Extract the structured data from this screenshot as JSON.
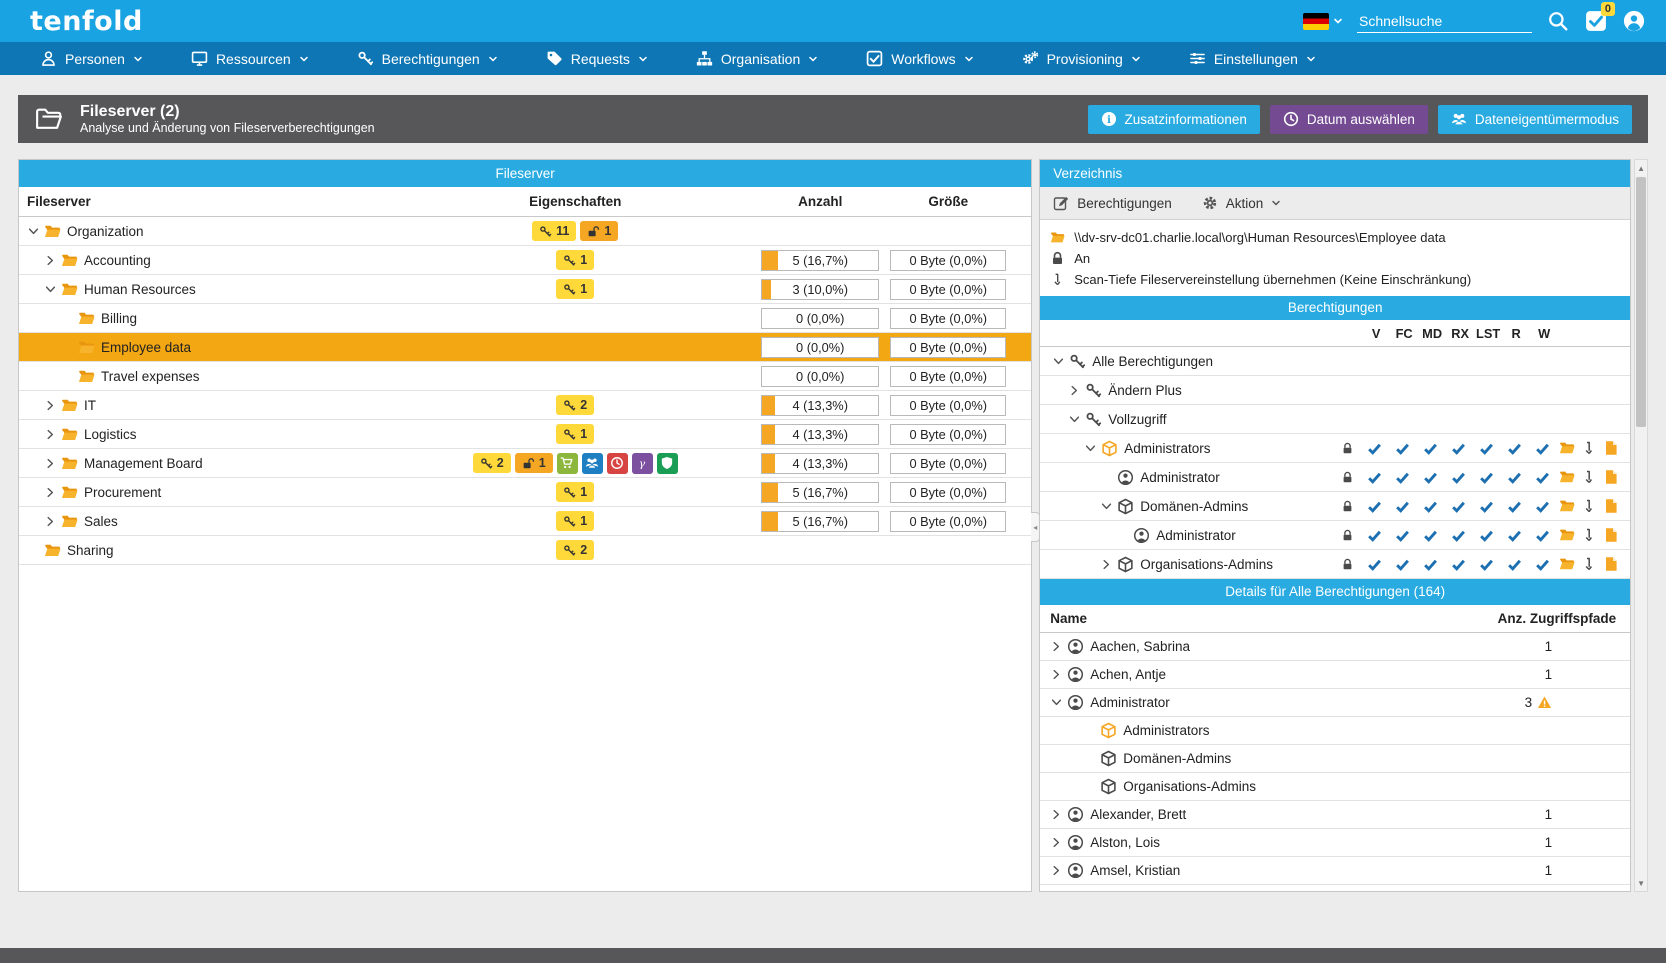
{
  "topbar": {
    "logo": "tenfold",
    "search_placeholder": "Schnellsuche",
    "notification_count": "0"
  },
  "nav": {
    "items": [
      {
        "label": "Personen",
        "icon": "person-nav"
      },
      {
        "label": "Ressourcen",
        "icon": "monitor"
      },
      {
        "label": "Berechtigungen",
        "icon": "key"
      },
      {
        "label": "Requests",
        "icon": "tag"
      },
      {
        "label": "Organisation",
        "icon": "orgchart"
      },
      {
        "label": "Workflows",
        "icon": "checkbox"
      },
      {
        "label": "Provisioning",
        "icon": "gears"
      },
      {
        "label": "Einstellungen",
        "icon": "sliders"
      }
    ]
  },
  "page_header": {
    "title": "Fileserver (2)",
    "subtitle": "Analyse und Änderung von Fileserverberechtigungen",
    "buttons": [
      {
        "label": "Zusatzinformationen",
        "icon": "info",
        "color": "#29abe2"
      },
      {
        "label": "Datum auswählen",
        "icon": "clock-outline",
        "color": "#744a92"
      },
      {
        "label": "Dateneigentümermodus",
        "icon": "people",
        "color": "#29abe2"
      }
    ]
  },
  "fileserver_panel": {
    "title": "Fileserver",
    "columns": {
      "name": "Fileserver",
      "props": "Eigenschaften",
      "count": "Anzahl",
      "size": "Größe"
    },
    "rows": [
      {
        "label": "Organization",
        "level": 0,
        "chevron": "down",
        "badges": [
          {
            "icon": "key",
            "count": "11",
            "style": "yellow"
          },
          {
            "icon": "unlock",
            "count": "1",
            "style": "orange"
          }
        ],
        "count": null,
        "size": null,
        "selected": false
      },
      {
        "label": "Accounting",
        "level": 1,
        "chevron": "right",
        "badges": [
          {
            "icon": "key",
            "count": "1",
            "style": "yellow"
          }
        ],
        "count": {
          "text": "5 (16,7%)",
          "pct": 16.7
        },
        "size": "0 Byte (0,0%)",
        "selected": false
      },
      {
        "label": "Human Resources",
        "level": 1,
        "chevron": "down",
        "badges": [
          {
            "icon": "key",
            "count": "1",
            "style": "yellow"
          }
        ],
        "count": {
          "text": "3 (10,0%)",
          "pct": 10
        },
        "size": "0 Byte (0,0%)",
        "selected": false
      },
      {
        "label": "Billing",
        "level": 2,
        "chevron": "none",
        "badges": [],
        "count": {
          "text": "0 (0,0%)",
          "pct": 0
        },
        "size": "0 Byte (0,0%)",
        "selected": false
      },
      {
        "label": "Employee data",
        "level": 2,
        "chevron": "none",
        "badges": [],
        "count": {
          "text": "0 (0,0%)",
          "pct": 0
        },
        "size": "0 Byte (0,0%)",
        "selected": true
      },
      {
        "label": "Travel expenses",
        "level": 2,
        "chevron": "none",
        "badges": [],
        "count": {
          "text": "0 (0,0%)",
          "pct": 0
        },
        "size": "0 Byte (0,0%)",
        "selected": false
      },
      {
        "label": "IT",
        "level": 1,
        "chevron": "right",
        "badges": [
          {
            "icon": "key",
            "count": "2",
            "style": "yellow"
          }
        ],
        "count": {
          "text": "4 (13,3%)",
          "pct": 13.3
        },
        "size": "0 Byte (0,0%)",
        "selected": false
      },
      {
        "label": "Logistics",
        "level": 1,
        "chevron": "right",
        "badges": [
          {
            "icon": "key",
            "count": "1",
            "style": "yellow"
          }
        ],
        "count": {
          "text": "4 (13,3%)",
          "pct": 13.3
        },
        "size": "0 Byte (0,0%)",
        "selected": false
      },
      {
        "label": "Management Board",
        "level": 1,
        "chevron": "right",
        "badges": [
          {
            "icon": "key",
            "count": "2",
            "style": "yellow"
          },
          {
            "icon": "unlock",
            "count": "1",
            "style": "orange"
          },
          {
            "icon": "cart",
            "style": "green"
          },
          {
            "icon": "people",
            "style": "blue"
          },
          {
            "icon": "clock",
            "style": "red"
          },
          {
            "icon": "gamma",
            "style": "purple"
          },
          {
            "icon": "shield",
            "style": "dgreen"
          }
        ],
        "count": {
          "text": "4 (13,3%)",
          "pct": 13.3
        },
        "size": "0 Byte (0,0%)",
        "selected": false
      },
      {
        "label": "Procurement",
        "level": 1,
        "chevron": "right",
        "badges": [
          {
            "icon": "key",
            "count": "1",
            "style": "yellow"
          }
        ],
        "count": {
          "text": "5 (16,7%)",
          "pct": 16.7
        },
        "size": "0 Byte (0,0%)",
        "selected": false
      },
      {
        "label": "Sales",
        "level": 1,
        "chevron": "right",
        "badges": [
          {
            "icon": "key",
            "count": "1",
            "style": "yellow"
          }
        ],
        "count": {
          "text": "5 (16,7%)",
          "pct": 16.7
        },
        "size": "0 Byte (0,0%)",
        "selected": false
      },
      {
        "label": "Sharing",
        "level": 0,
        "chevron": "none",
        "badges": [
          {
            "icon": "key",
            "count": "2",
            "style": "yellow"
          }
        ],
        "count": null,
        "size": null,
        "selected": false
      }
    ]
  },
  "directory_panel": {
    "title": "Verzeichnis",
    "toolbar": {
      "edit_label": "Berechtigungen",
      "action_label": "Aktion"
    },
    "info": [
      {
        "icon": "folder",
        "text": "\\\\dv-srv-dc01.charlie.local\\org\\Human Resources\\Employee data"
      },
      {
        "icon": "lock",
        "text": "An"
      },
      {
        "icon": "arrow-down",
        "text": "Scan-Tiefe Fileservereinstellung übernehmen (Keine Einschränkung)"
      }
    ],
    "permissions": {
      "title": "Berechtigungen",
      "perm_columns": [
        "V",
        "FC",
        "MD",
        "RX",
        "LST",
        "R",
        "W"
      ],
      "rows": [
        {
          "label": "Alle Berechtigungen",
          "level": 0,
          "chevron": "down",
          "icon": "key",
          "perms": false
        },
        {
          "label": "Ändern Plus",
          "level": 1,
          "chevron": "right",
          "icon": "key",
          "perms": false
        },
        {
          "label": "Vollzugriff",
          "level": 1,
          "chevron": "down",
          "icon": "key",
          "perms": false
        },
        {
          "label": "Administrators",
          "level": 2,
          "chevron": "down",
          "icon": "box-orange",
          "perms": true
        },
        {
          "label": "Administrator",
          "level": 3,
          "chevron": "none",
          "icon": "person",
          "perms": true
        },
        {
          "label": "Domänen-Admins",
          "level": 3,
          "chevron": "down",
          "icon": "box",
          "perms": true
        },
        {
          "label": "Administrator",
          "level": 4,
          "chevron": "none",
          "icon": "person",
          "perms": true
        },
        {
          "label": "Organisations-Admins",
          "level": 3,
          "chevron": "right",
          "icon": "box",
          "perms": true
        }
      ]
    },
    "details": {
      "title": "Details für Alle Berechtigungen (164)",
      "columns": {
        "name": "Name",
        "paths": "Anz. Zugriffspfade"
      },
      "rows": [
        {
          "label": "Aachen, Sabrina",
          "chevron": "right",
          "icon": "person",
          "count": "1",
          "warn": false,
          "sub": false
        },
        {
          "label": "Achen, Antje",
          "chevron": "right",
          "icon": "person",
          "count": "1",
          "warn": false,
          "sub": false
        },
        {
          "label": "Administrator",
          "chevron": "down",
          "icon": "person",
          "count": "3",
          "warn": true,
          "sub": false
        },
        {
          "label": "Administrators",
          "chevron": "none",
          "icon": "box-orange",
          "count": "",
          "warn": false,
          "sub": true
        },
        {
          "label": "Domänen-Admins",
          "chevron": "none",
          "icon": "box",
          "count": "",
          "warn": false,
          "sub": true
        },
        {
          "label": "Organisations-Admins",
          "chevron": "none",
          "icon": "box",
          "count": "",
          "warn": false,
          "sub": true
        },
        {
          "label": "Alexander, Brett",
          "chevron": "right",
          "icon": "person",
          "count": "1",
          "warn": false,
          "sub": false
        },
        {
          "label": "Alston, Lois",
          "chevron": "right",
          "icon": "person",
          "count": "1",
          "warn": false,
          "sub": false
        },
        {
          "label": "Amsel, Kristian",
          "chevron": "right",
          "icon": "person",
          "count": "1",
          "warn": false,
          "sub": false
        }
      ]
    }
  },
  "colors": {
    "topbar": "#1aa3e3",
    "navbar": "#0e76b4",
    "header_gray": "#57575a",
    "accent_blue": "#29abe2",
    "accent_purple": "#744a92",
    "selected_orange": "#f3a712",
    "check_blue": "#1c6fb0",
    "folder_orange": "#f5a623",
    "badges": {
      "yellow": "#ffd83a",
      "orange": "#f5a623",
      "green": "#8db73c",
      "blue": "#1e7fc2",
      "red": "#d64541",
      "purple": "#7c4f9f",
      "dgreen": "#1a9e55"
    }
  }
}
